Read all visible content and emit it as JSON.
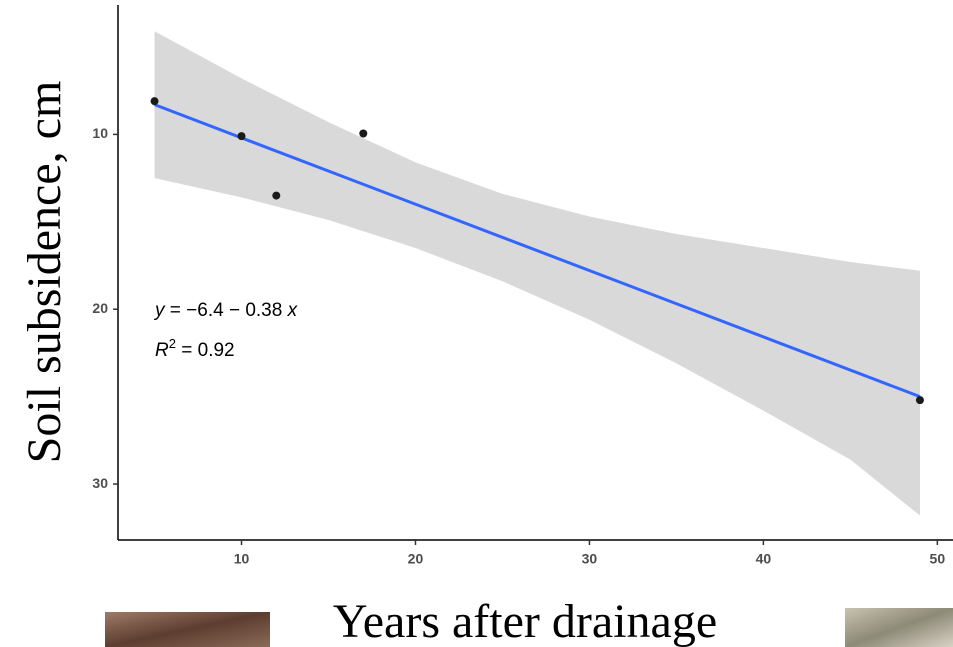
{
  "chart_data": {
    "type": "scatter",
    "x_label": "Years after drainage",
    "y_label": "Soil subsidence, cm",
    "xlim": [
      2.9,
      50.9
    ],
    "ylim": [
      2.6,
      33.2
    ],
    "y_reversed": true,
    "xticks": [
      10,
      20,
      30,
      40,
      50
    ],
    "yticks": [
      10,
      20,
      30
    ],
    "points": {
      "color": "#1a1a1a",
      "x": [
        5,
        10,
        12,
        17,
        49
      ],
      "values": [
        8.1,
        10.1,
        13.5,
        9.95,
        25.2
      ]
    },
    "fit": {
      "color": "#3366ff",
      "x": [
        5,
        49
      ],
      "values": [
        8.3,
        25.0
      ]
    },
    "band": {
      "color": "#d9d9d9",
      "x": [
        5,
        10,
        15,
        20,
        25,
        30,
        35,
        40,
        45,
        49
      ],
      "lower": [
        4.1,
        6.8,
        9.3,
        11.6,
        13.4,
        14.7,
        15.7,
        16.5,
        17.3,
        17.8
      ],
      "upper": [
        12.5,
        13.6,
        14.9,
        16.5,
        18.4,
        20.6,
        23.1,
        25.8,
        28.6,
        31.8
      ]
    },
    "equation": {
      "y": "y",
      "rest": " = −6.4 − 0.38 ",
      "x": "x"
    },
    "r2": {
      "base": "R",
      "sup": "2",
      "rest": " = 0.92"
    }
  }
}
